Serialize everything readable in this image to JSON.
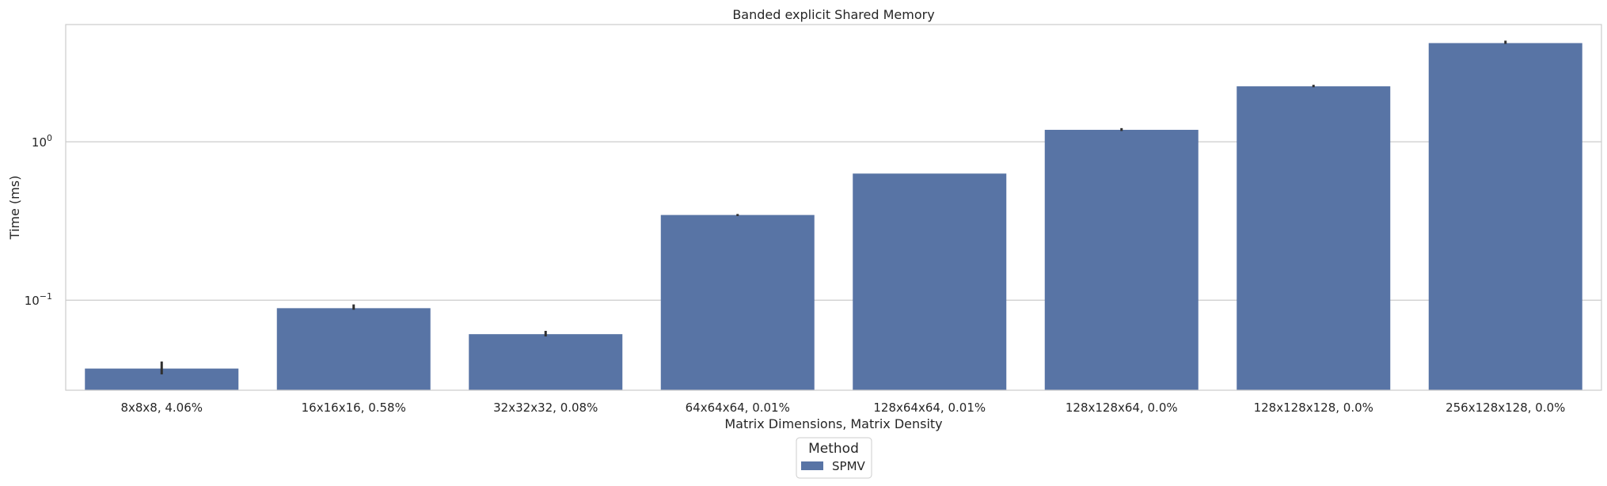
{
  "chart_data": {
    "type": "bar",
    "title": "Banded explicit Shared Memory",
    "xlabel": "Matrix Dimensions, Matrix Density",
    "ylabel": "Time (ms)",
    "yscale": "log",
    "ylim": [
      0.027,
      5.5
    ],
    "y_ticks": [
      {
        "value": 0.1,
        "base": "10",
        "exp": "−1"
      },
      {
        "value": 1,
        "base": "10",
        "exp": "0"
      }
    ],
    "grid": true,
    "categories": [
      "8x8x8, 4.06%",
      "16x16x16, 0.58%",
      "32x32x32, 0.08%",
      "64x64x64, 0.01%",
      "128x64x64, 0.01%",
      "128x128x64, 0.0%",
      "128x128x128, 0.0%",
      "256x128x128, 0.0%"
    ],
    "series": [
      {
        "name": "SPMV",
        "color": "#5874a5",
        "values": [
          0.037,
          0.089,
          0.061,
          0.345,
          0.63,
          1.19,
          2.24,
          4.2
        ],
        "error_low": [
          0.034,
          0.087,
          0.059,
          0.34,
          0.63,
          1.17,
          2.21,
          4.15
        ],
        "error_high": [
          0.041,
          0.094,
          0.064,
          0.35,
          0.63,
          1.22,
          2.29,
          4.35
        ]
      }
    ],
    "legend": {
      "title": "Method",
      "placement": "bottom-center"
    }
  }
}
